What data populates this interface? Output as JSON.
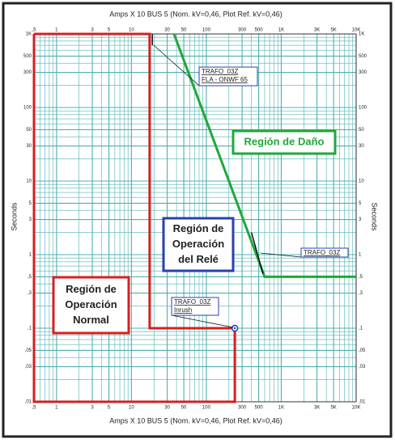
{
  "chart_data": {
    "type": "line",
    "title_top": "Amps X 10 BUS 5 (Nom. kV=0,46, Plot Ref. kV=0,46)",
    "title_bottom": "Amps X 10 BUS 5 (Nom. kV=0,46, Plot Ref. kV=0,46)",
    "ylabel_left": "Seconds",
    "ylabel_right": "Seconds",
    "xscale": "log",
    "yscale": "log",
    "grid": true,
    "grid_color": "#4fb0b0",
    "xlim": [
      0.5,
      10000
    ],
    "ylim": [
      0.01,
      1000
    ],
    "xticks": [
      {
        "value": 0.5,
        "label": ",5"
      },
      1,
      3,
      5,
      10,
      30,
      50,
      100,
      300,
      500,
      {
        "value": 1000,
        "label": "1K"
      },
      {
        "value": 3000,
        "label": "3K"
      },
      {
        "value": 5000,
        "label": "5K"
      },
      {
        "value": 10000,
        "label": "10K"
      }
    ],
    "yticks": [
      {
        "value": 0.01,
        "label": ",01"
      },
      {
        "value": 0.03,
        "label": ",03"
      },
      {
        "value": 0.05,
        "label": ",05"
      },
      {
        "value": 0.1,
        "label": ",1"
      },
      {
        "value": 0.3,
        "label": ",3"
      },
      {
        "value": 0.5,
        "label": ",5"
      },
      1,
      3,
      5,
      10,
      30,
      50,
      100,
      300,
      500,
      {
        "value": 1000,
        "label": "1K"
      }
    ],
    "xgrid": [
      0.6,
      0.7,
      0.8,
      0.9,
      2,
      4,
      6,
      7,
      8,
      9,
      20,
      40,
      60,
      70,
      80,
      90,
      200,
      400,
      600,
      700,
      800,
      900,
      2000,
      4000,
      6000,
      7000,
      8000,
      9000
    ],
    "ygrid": [
      0.02,
      0.04,
      0.06,
      0.07,
      0.08,
      0.09,
      0.2,
      0.4,
      0.6,
      0.7,
      0.8,
      0.9,
      2,
      4,
      6,
      7,
      8,
      9,
      20,
      40,
      60,
      70,
      80,
      90,
      200,
      400,
      600,
      700,
      800,
      900
    ],
    "series": [
      {
        "color": "#d42020",
        "x": [
          0.5,
          17.5,
          17.5,
          240,
          240,
          0.5,
          0.5
        ],
        "values": [
          1000,
          1000,
          0.1,
          0.1,
          0.01,
          0.01,
          1000
        ]
      },
      {
        "color": "#1fa83a",
        "x": [
          37,
          600,
          10000
        ],
        "values": [
          1000,
          0.5,
          0.5
        ]
      },
      {
        "color": "#111111",
        "x": [
          19,
          19
        ],
        "values": [
          1000,
          700
        ]
      },
      {
        "color": "#111111",
        "x": [
          400,
          570
        ],
        "values": [
          2,
          0.55
        ]
      }
    ],
    "points": [
      {
        "x": 240,
        "y": 0.1,
        "color": "#1f3fbf"
      }
    ],
    "annotations": [
      {
        "lines": [
          "TRAFO_03Z",
          "FLA - ONWF 65"
        ]
      },
      {
        "lines": [
          "TRAFO_03Z"
        ]
      },
      {
        "lines": [
          "TRAFO_03Z",
          "Inrush"
        ]
      }
    ],
    "regions": [
      {
        "lines": [
          "Región de Daño"
        ],
        "color": "#1fa83a"
      },
      {
        "lines": [
          "Región de",
          "Operación",
          "del Relé"
        ],
        "color": "#2a3fb0"
      },
      {
        "lines": [
          "Región de",
          "Operación",
          "Normal"
        ],
        "color": "#d42020"
      }
    ]
  }
}
